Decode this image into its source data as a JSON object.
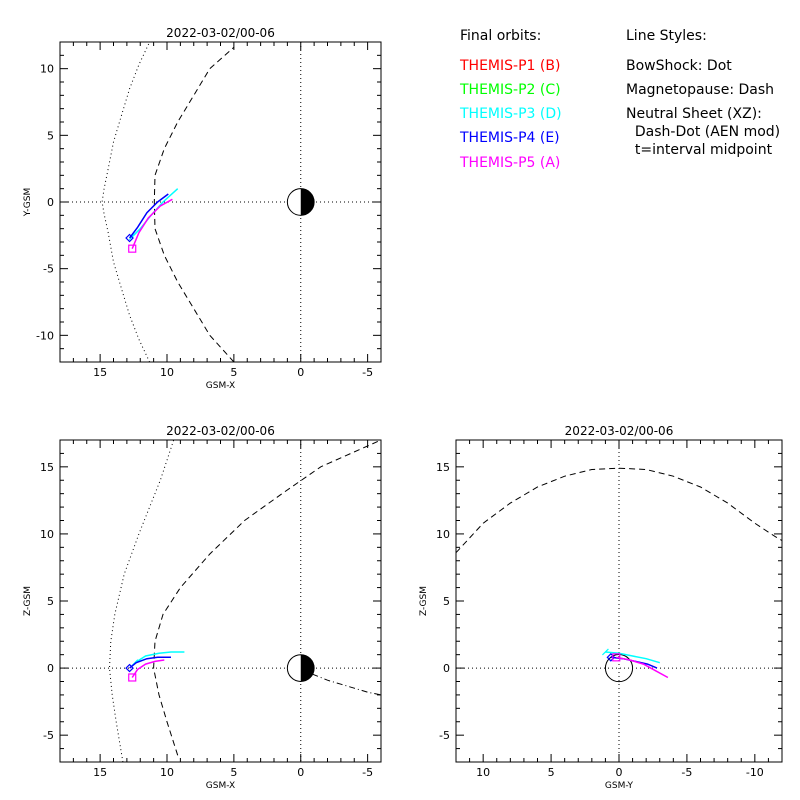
{
  "legend": {
    "orbits_title": "Final orbits:",
    "probes": [
      {
        "label": "THEMIS-P1 (B)",
        "color": "#ff0000"
      },
      {
        "label": "THEMIS-P2 (C)",
        "color": "#00ff00"
      },
      {
        "label": "THEMIS-P3 (D)",
        "color": "#00ffff"
      },
      {
        "label": "THEMIS-P4 (E)",
        "color": "#0000ff"
      },
      {
        "label": "THEMIS-P5 (A)",
        "color": "#ff00ff"
      }
    ],
    "styles_title": "Line Styles:",
    "styles": [
      "BowShock: Dot",
      "Magnetopause: Dash",
      "Neutral Sheet (XZ):",
      "  Dash-Dot (AEN mod)",
      "  t=interval midpoint"
    ]
  },
  "chart_data": [
    {
      "type": "line",
      "title": "2022-03-02/00-06",
      "xlabel": "GSM-X",
      "ylabel": "Y-GSM",
      "xlim": [
        18,
        -6
      ],
      "ylim": [
        -12,
        12
      ],
      "xticks": [
        15,
        10,
        5,
        0,
        -5
      ],
      "yticks": [
        -10,
        -5,
        0,
        5,
        10
      ],
      "earth": true,
      "bowshock": {
        "x": [
          11.3,
          12.1,
          12.8,
          13.4,
          14.0,
          14.4,
          14.7,
          14.85,
          14.7,
          14.4,
          14.0,
          13.4,
          12.8,
          12.1,
          11.3
        ],
        "y": [
          -12,
          -10.3,
          -8.5,
          -6.5,
          -4.5,
          -2.3,
          -0.9,
          0,
          1.0,
          2.5,
          4.5,
          6.5,
          8.5,
          10.3,
          12
        ]
      },
      "magnetopause": {
        "x": [
          5.0,
          6.8,
          8.0,
          9.2,
          10.2,
          10.9,
          10.95,
          10.9,
          10.2,
          9.2,
          8.0,
          6.8,
          5.0
        ],
        "y": [
          -12,
          -10,
          -8,
          -6,
          -4,
          -2,
          0,
          2,
          4,
          6,
          8,
          10,
          11.6
        ]
      },
      "neutral_sheet": null,
      "orbits": [
        {
          "name": "THEMIS-P3",
          "color": "#00ffff",
          "x": [
            12.6,
            12.0,
            11.2,
            10.3,
            9.2
          ],
          "y": [
            -2.6,
            -2.0,
            -1.0,
            0.0,
            1.0
          ],
          "marker": null
        },
        {
          "name": "THEMIS-P4",
          "color": "#0000ff",
          "x": [
            12.8,
            12.2,
            11.5,
            10.7,
            9.9
          ],
          "y": [
            -2.7,
            -1.9,
            -0.8,
            0.0,
            0.6
          ],
          "marker": "diamond"
        },
        {
          "name": "THEMIS-P5",
          "color": "#ff00ff",
          "x": [
            12.6,
            12.1,
            11.4,
            10.5,
            9.6
          ],
          "y": [
            -3.5,
            -2.3,
            -1.2,
            -0.3,
            0.2
          ],
          "marker": "square"
        }
      ]
    },
    {
      "type": "line",
      "title": "2022-03-02/00-06",
      "xlabel": "GSM-X",
      "ylabel": "Z-GSM",
      "xlim": [
        18,
        -6
      ],
      "ylim": [
        -7,
        17
      ],
      "xticks": [
        15,
        10,
        5,
        0,
        -5
      ],
      "yticks": [
        -5,
        0,
        5,
        10,
        15
      ],
      "earth": true,
      "bowshock": {
        "x": [
          13.3,
          13.8,
          14.1,
          14.3,
          14.2,
          13.9,
          13.2,
          12.1,
          10.5,
          9.5
        ],
        "y": [
          -7,
          -4,
          -2,
          0,
          2,
          4,
          7,
          10,
          14,
          17
        ]
      },
      "magnetopause": {
        "x": [
          9.2,
          10.0,
          10.6,
          11.0,
          10.9,
          10.3,
          9.0,
          6.8,
          4.2,
          1.4,
          -1.5,
          -6.0
        ],
        "y": [
          -6.5,
          -4,
          -2,
          0,
          2,
          4,
          6,
          8.5,
          11,
          13,
          15,
          17
        ]
      },
      "neutral_sheet": {
        "x": [
          0,
          -1,
          -2,
          -3,
          -4,
          -5,
          -6
        ],
        "y": [
          0,
          -0.5,
          -0.9,
          -1.2,
          -1.5,
          -1.8,
          -2.0
        ]
      },
      "orbits": [
        {
          "name": "THEMIS-P3",
          "color": "#00ffff",
          "x": [
            12.4,
            11.6,
            10.6,
            9.7,
            8.7
          ],
          "y": [
            0.4,
            0.9,
            1.1,
            1.2,
            1.2
          ],
          "marker": null
        },
        {
          "name": "THEMIS-P4",
          "color": "#0000ff",
          "x": [
            12.8,
            12.3,
            11.5,
            10.7,
            9.7
          ],
          "y": [
            0.0,
            0.4,
            0.7,
            0.8,
            0.8
          ],
          "marker": "diamond"
        },
        {
          "name": "THEMIS-P5",
          "color": "#ff00ff",
          "x": [
            12.6,
            12.2,
            11.6,
            10.9,
            10.2
          ],
          "y": [
            -0.7,
            -0.1,
            0.3,
            0.5,
            0.6
          ],
          "marker": "square"
        }
      ]
    },
    {
      "type": "line",
      "title": "2022-03-02/00-06",
      "xlabel": "GSM-Y",
      "ylabel": "Z-GSM",
      "xlim": [
        12,
        -12
      ],
      "ylim": [
        -7,
        17
      ],
      "xticks": [
        10,
        5,
        0,
        -5,
        -10
      ],
      "yticks": [
        -5,
        0,
        5,
        10,
        15
      ],
      "earth": false,
      "earth_outline": true,
      "bowshock": null,
      "magnetopause": {
        "x": [
          12,
          10,
          8,
          6,
          4,
          2,
          0,
          -2,
          -4,
          -6,
          -8,
          -10,
          -11.5,
          -12
        ],
        "y": [
          8.6,
          10.8,
          12.3,
          13.5,
          14.3,
          14.8,
          14.9,
          14.8,
          14.3,
          13.5,
          12.3,
          10.8,
          9.8,
          9.5
        ]
      },
      "neutral_sheet": null,
      "orbits": [
        {
          "name": "THEMIS-P3",
          "color": "#00ffff",
          "x": [
            1.0,
            0.0,
            -1.0,
            -2.0,
            -3.0
          ],
          "y": [
            1.2,
            1.1,
            0.9,
            0.7,
            0.4
          ],
          "marker": null
        },
        {
          "name": "THEMIS-P4",
          "color": "#0000ff",
          "x": [
            0.6,
            -0.3,
            -1.2,
            -2.1,
            -2.8
          ],
          "y": [
            0.8,
            0.7,
            0.5,
            0.3,
            0.0
          ],
          "marker": "diamond"
        },
        {
          "name": "THEMIS-P5",
          "color": "#ff00ff",
          "x": [
            0.2,
            -0.8,
            -1.8,
            -2.7,
            -3.6
          ],
          "y": [
            0.8,
            0.6,
            0.3,
            -0.2,
            -0.7
          ],
          "marker": "square"
        }
      ]
    }
  ]
}
